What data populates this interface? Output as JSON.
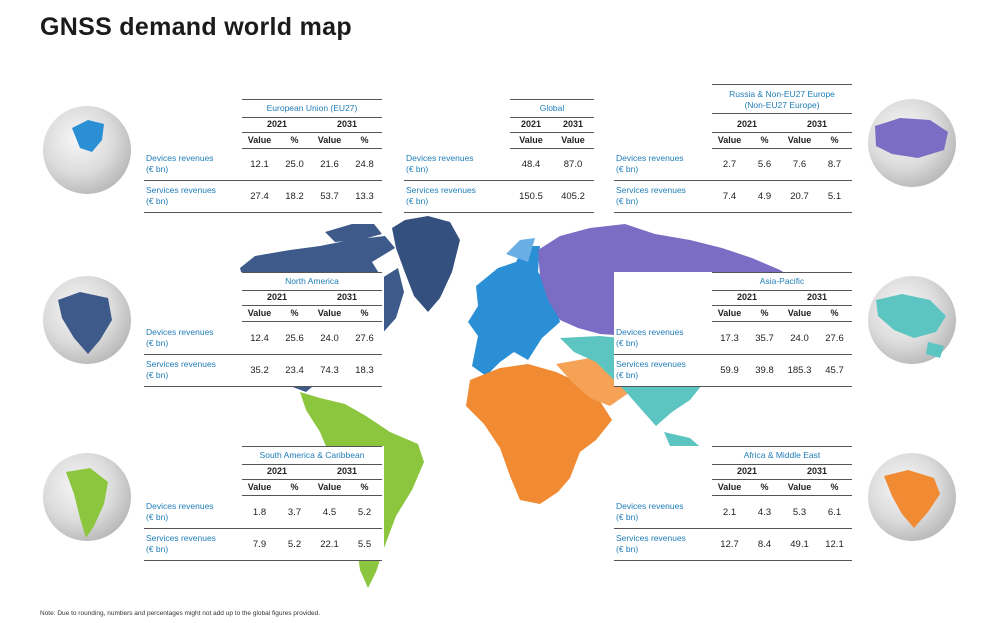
{
  "title": "GNSS demand world map",
  "note": "Note: Due to rounding, numbers and percentages might not add up to the global figures provided.",
  "columns": {
    "year_a": "2021",
    "year_b": "2031",
    "value": "Value",
    "percent": "%"
  },
  "row_labels": {
    "devices_1": "Devices revenues",
    "devices_2": "(€ bn)",
    "services_1": "Services revenues",
    "services_2": "(€ bn)"
  },
  "colors": {
    "europe": "#2b8fd6",
    "russia": "#7b6cc4",
    "north_america": "#3d5a8a",
    "south_america": "#8cc63f",
    "africa_me": "#f08a33",
    "asia_pacific": "#5cc5c2",
    "label_blue": "#1f7db8"
  },
  "regions": {
    "eu": {
      "name": "European Union (EU27)",
      "devices": [
        "12.1",
        "25.0",
        "21.6",
        "24.8"
      ],
      "services": [
        "27.4",
        "18.2",
        "53.7",
        "13.3"
      ]
    },
    "global": {
      "name": "Global",
      "devices": [
        "48.4",
        "87.0"
      ],
      "services": [
        "150.5",
        "405.2"
      ]
    },
    "russia": {
      "name_1": "Russia & Non-EU27 Europe",
      "name_2": "(Non-EU27 Europe)",
      "devices": [
        "2.7",
        "5.6",
        "7.6",
        "8.7"
      ],
      "services": [
        "7.4",
        "4.9",
        "20.7",
        "5.1"
      ]
    },
    "north_america": {
      "name": "North America",
      "devices": [
        "12.4",
        "25.6",
        "24.0",
        "27.6"
      ],
      "services": [
        "35.2",
        "23.4",
        "74.3",
        "18.3"
      ]
    },
    "asia_pacific": {
      "name": "Asia-Pacific",
      "devices": [
        "17.3",
        "35.7",
        "24.0",
        "27.6"
      ],
      "services": [
        "59.9",
        "39.8",
        "185.3",
        "45.7"
      ]
    },
    "south_america": {
      "name": "South America & Caribbean",
      "devices": [
        "1.8",
        "3.7",
        "4.5",
        "5.2"
      ],
      "services": [
        "7.9",
        "5.2",
        "22.1",
        "5.5"
      ]
    },
    "africa_me": {
      "name": "Africa & Middle East",
      "devices": [
        "2.1",
        "4.3",
        "5.3",
        "6.1"
      ],
      "services": [
        "12.7",
        "8.4",
        "49.1",
        "12.1"
      ]
    }
  }
}
